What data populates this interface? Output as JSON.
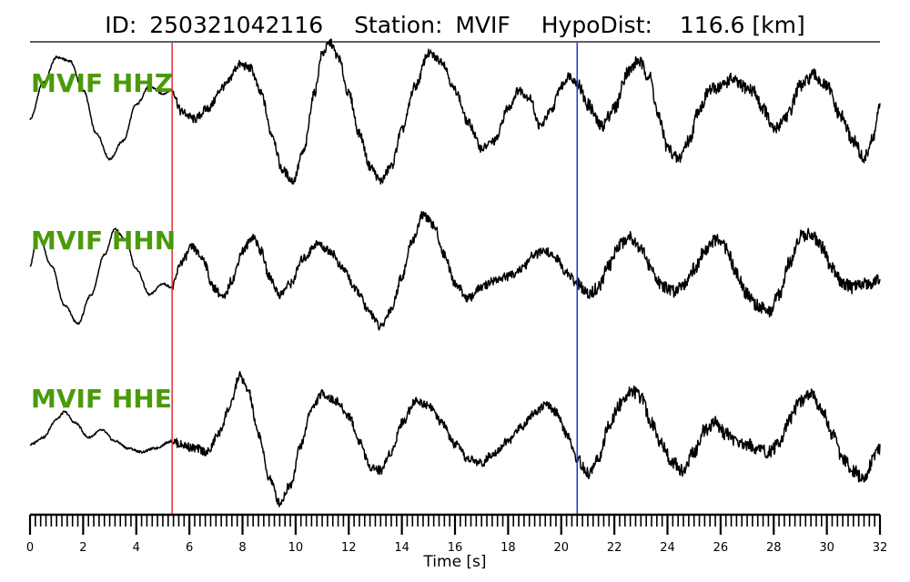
{
  "chart_data": {
    "type": "line",
    "title": {
      "id_label": "ID:",
      "id_value": "250321042116",
      "station_label": "Station:",
      "station_value": "MVIF",
      "hypodist_label": "HypoDist:",
      "hypodist_value": "116.6 [km]"
    },
    "xlabel": "Time [s]",
    "xlim": [
      0,
      32
    ],
    "x_ticks": [
      0,
      2,
      4,
      6,
      8,
      10,
      12,
      14,
      16,
      18,
      20,
      22,
      24,
      26,
      28,
      30,
      32
    ],
    "minor_tick_step": 0.2,
    "label_color": "#4a9a0a",
    "trace_color": "#000000",
    "markers": [
      {
        "time": 5.35,
        "color": "#e03030"
      },
      {
        "time": 20.6,
        "color": "#2030e0"
      }
    ],
    "y_range": [
      -1,
      1
    ],
    "series": [
      {
        "name": "MVIF HHZ",
        "points": [
          [
            0,
            -0.05
          ],
          [
            0.5,
            0.45
          ],
          [
            1,
            0.8
          ],
          [
            1.5,
            0.75
          ],
          [
            2,
            0.35
          ],
          [
            2.5,
            -0.25
          ],
          [
            3,
            -0.6
          ],
          [
            3.5,
            -0.35
          ],
          [
            4,
            0.15
          ],
          [
            4.5,
            0.4
          ],
          [
            5,
            0.3
          ],
          [
            5.35,
            0.35
          ],
          [
            5.7,
            0.05
          ],
          [
            6.2,
            -0.05
          ],
          [
            6.7,
            0.1
          ],
          [
            7.3,
            0.4
          ],
          [
            7.9,
            0.7
          ],
          [
            8.3,
            0.65
          ],
          [
            8.7,
            0.3
          ],
          [
            9.1,
            -0.25
          ],
          [
            9.5,
            -0.75
          ],
          [
            9.9,
            -0.9
          ],
          [
            10.3,
            -0.5
          ],
          [
            10.7,
            0.3
          ],
          [
            11,
            0.85
          ],
          [
            11.3,
            1.0
          ],
          [
            11.6,
            0.8
          ],
          [
            12,
            0.3
          ],
          [
            12.4,
            -0.25
          ],
          [
            12.8,
            -0.7
          ],
          [
            13.2,
            -0.9
          ],
          [
            13.6,
            -0.7
          ],
          [
            14,
            -0.2
          ],
          [
            14.5,
            0.4
          ],
          [
            15,
            0.85
          ],
          [
            15.5,
            0.75
          ],
          [
            16,
            0.35
          ],
          [
            16.5,
            -0.1
          ],
          [
            17,
            -0.45
          ],
          [
            17.5,
            -0.35
          ],
          [
            18,
            0.1
          ],
          [
            18.4,
            0.35
          ],
          [
            18.8,
            0.25
          ],
          [
            19.2,
            -0.15
          ],
          [
            19.6,
            0.05
          ],
          [
            20,
            0.4
          ],
          [
            20.3,
            0.55
          ],
          [
            20.6,
            0.45
          ],
          [
            21,
            0.15
          ],
          [
            21.5,
            -0.15
          ],
          [
            22,
            0.1
          ],
          [
            22.5,
            0.6
          ],
          [
            22.9,
            0.75
          ],
          [
            23.3,
            0.55
          ],
          [
            23.7,
            -0.05
          ],
          [
            24,
            -0.45
          ],
          [
            24.4,
            -0.6
          ],
          [
            24.8,
            -0.35
          ],
          [
            25.2,
            0.1
          ],
          [
            25.6,
            0.35
          ],
          [
            26,
            0.4
          ],
          [
            26.4,
            0.5
          ],
          [
            26.8,
            0.4
          ],
          [
            27.2,
            0.35
          ],
          [
            27.6,
            0.1
          ],
          [
            28,
            -0.2
          ],
          [
            28.5,
            0.0
          ],
          [
            29,
            0.4
          ],
          [
            29.5,
            0.55
          ],
          [
            30,
            0.4
          ],
          [
            30.5,
            0.0
          ],
          [
            31,
            -0.35
          ],
          [
            31.4,
            -0.6
          ],
          [
            31.7,
            -0.35
          ],
          [
            32,
            0.1
          ]
        ]
      },
      {
        "name": "MVIF HHN",
        "points": [
          [
            0,
            0.1
          ],
          [
            0.3,
            0.55
          ],
          [
            0.8,
            0.1
          ],
          [
            1.3,
            -0.45
          ],
          [
            1.8,
            -0.7
          ],
          [
            2.3,
            -0.3
          ],
          [
            2.8,
            0.25
          ],
          [
            3.2,
            0.6
          ],
          [
            3.6,
            0.45
          ],
          [
            4,
            0.05
          ],
          [
            4.5,
            -0.3
          ],
          [
            5,
            -0.15
          ],
          [
            5.35,
            -0.2
          ],
          [
            5.7,
            0.15
          ],
          [
            6.1,
            0.35
          ],
          [
            6.5,
            0.2
          ],
          [
            6.9,
            -0.2
          ],
          [
            7.3,
            -0.35
          ],
          [
            7.6,
            -0.1
          ],
          [
            8,
            0.3
          ],
          [
            8.4,
            0.5
          ],
          [
            8.7,
            0.3
          ],
          [
            9,
            -0.05
          ],
          [
            9.4,
            -0.3
          ],
          [
            9.8,
            -0.15
          ],
          [
            10.3,
            0.2
          ],
          [
            10.8,
            0.4
          ],
          [
            11.3,
            0.3
          ],
          [
            11.8,
            0.05
          ],
          [
            12.3,
            -0.25
          ],
          [
            12.8,
            -0.55
          ],
          [
            13.2,
            -0.75
          ],
          [
            13.6,
            -0.5
          ],
          [
            14,
            -0.05
          ],
          [
            14.4,
            0.45
          ],
          [
            14.8,
            0.8
          ],
          [
            15.2,
            0.65
          ],
          [
            15.6,
            0.25
          ],
          [
            16,
            -0.15
          ],
          [
            16.5,
            -0.35
          ],
          [
            17,
            -0.2
          ],
          [
            17.5,
            -0.1
          ],
          [
            18,
            -0.05
          ],
          [
            18.5,
            0.05
          ],
          [
            19,
            0.25
          ],
          [
            19.4,
            0.3
          ],
          [
            19.8,
            0.2
          ],
          [
            20.2,
            0.0
          ],
          [
            20.6,
            -0.15
          ],
          [
            21,
            -0.3
          ],
          [
            21.4,
            -0.2
          ],
          [
            21.8,
            0.1
          ],
          [
            22.2,
            0.4
          ],
          [
            22.6,
            0.5
          ],
          [
            23,
            0.35
          ],
          [
            23.4,
            0.05
          ],
          [
            23.8,
            -0.2
          ],
          [
            24.2,
            -0.25
          ],
          [
            24.6,
            -0.15
          ],
          [
            25,
            0.05
          ],
          [
            25.4,
            0.3
          ],
          [
            25.8,
            0.45
          ],
          [
            26.2,
            0.35
          ],
          [
            26.6,
            0.0
          ],
          [
            27,
            -0.3
          ],
          [
            27.4,
            -0.45
          ],
          [
            27.8,
            -0.55
          ],
          [
            28.2,
            -0.3
          ],
          [
            28.6,
            0.15
          ],
          [
            29,
            0.5
          ],
          [
            29.4,
            0.55
          ],
          [
            29.8,
            0.35
          ],
          [
            30.2,
            0.05
          ],
          [
            30.6,
            -0.15
          ],
          [
            31,
            -0.2
          ],
          [
            31.5,
            -0.15
          ],
          [
            32,
            -0.1
          ]
        ]
      },
      {
        "name": "MVIF HHE",
        "points": [
          [
            0,
            -0.15
          ],
          [
            0.5,
            -0.05
          ],
          [
            1,
            0.2
          ],
          [
            1.3,
            0.3
          ],
          [
            1.7,
            0.15
          ],
          [
            2.2,
            -0.05
          ],
          [
            2.7,
            0.05
          ],
          [
            3.2,
            -0.1
          ],
          [
            3.7,
            -0.2
          ],
          [
            4.2,
            -0.25
          ],
          [
            4.7,
            -0.2
          ],
          [
            5.35,
            -0.1
          ],
          [
            5.7,
            -0.15
          ],
          [
            6.2,
            -0.2
          ],
          [
            6.7,
            -0.25
          ],
          [
            7.1,
            0.0
          ],
          [
            7.5,
            0.35
          ],
          [
            7.9,
            0.8
          ],
          [
            8.2,
            0.6
          ],
          [
            8.6,
            0.0
          ],
          [
            9,
            -0.6
          ],
          [
            9.4,
            -0.95
          ],
          [
            9.8,
            -0.7
          ],
          [
            10.2,
            -0.15
          ],
          [
            10.6,
            0.35
          ],
          [
            11,
            0.55
          ],
          [
            11.5,
            0.45
          ],
          [
            12,
            0.25
          ],
          [
            12.4,
            -0.1
          ],
          [
            12.8,
            -0.45
          ],
          [
            13.2,
            -0.5
          ],
          [
            13.6,
            -0.25
          ],
          [
            14,
            0.15
          ],
          [
            14.5,
            0.45
          ],
          [
            15,
            0.4
          ],
          [
            15.5,
            0.15
          ],
          [
            16,
            -0.15
          ],
          [
            16.5,
            -0.35
          ],
          [
            17,
            -0.4
          ],
          [
            17.5,
            -0.25
          ],
          [
            18,
            -0.1
          ],
          [
            18.5,
            0.1
          ],
          [
            19,
            0.3
          ],
          [
            19.4,
            0.4
          ],
          [
            19.8,
            0.3
          ],
          [
            20.2,
            0.0
          ],
          [
            20.6,
            -0.35
          ],
          [
            21,
            -0.55
          ],
          [
            21.4,
            -0.35
          ],
          [
            21.8,
            0.1
          ],
          [
            22.2,
            0.4
          ],
          [
            22.6,
            0.6
          ],
          [
            23,
            0.5
          ],
          [
            23.4,
            0.15
          ],
          [
            23.8,
            -0.15
          ],
          [
            24.2,
            -0.4
          ],
          [
            24.6,
            -0.5
          ],
          [
            25,
            -0.25
          ],
          [
            25.4,
            0.05
          ],
          [
            25.8,
            0.15
          ],
          [
            26.2,
            0.0
          ],
          [
            26.6,
            -0.1
          ],
          [
            27,
            -0.15
          ],
          [
            27.4,
            -0.2
          ],
          [
            27.8,
            -0.25
          ],
          [
            28.2,
            -0.15
          ],
          [
            28.6,
            0.2
          ],
          [
            29,
            0.45
          ],
          [
            29.4,
            0.55
          ],
          [
            29.8,
            0.35
          ],
          [
            30.2,
            0.0
          ],
          [
            30.6,
            -0.35
          ],
          [
            31,
            -0.5
          ],
          [
            31.4,
            -0.65
          ],
          [
            31.8,
            -0.3
          ],
          [
            32,
            -0.2
          ]
        ]
      }
    ]
  }
}
